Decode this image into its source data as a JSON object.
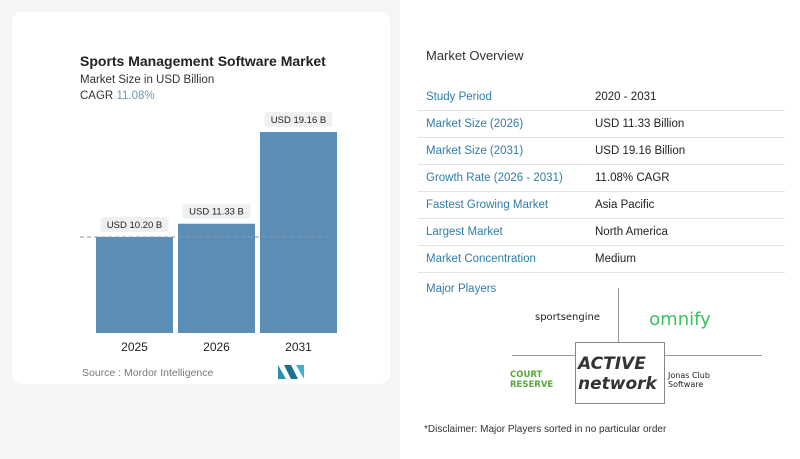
{
  "chart_data": {
    "type": "bar",
    "title": "Sports Management Software Market",
    "subtitle": "Market Size in USD Billion",
    "cagr_label": "CAGR",
    "cagr_value": "11.08%",
    "categories": [
      "2025",
      "2026",
      "2031"
    ],
    "values": [
      10.2,
      11.33,
      19.16
    ],
    "data_labels": [
      "USD 10.20 B",
      "USD 11.33 B",
      "USD 19.16 B"
    ],
    "ylim": [
      2,
      20
    ],
    "reference_line_value": 10.2,
    "bar_color": "#5b8db5",
    "source": "Source :  Mordor Intelligence"
  },
  "overview": {
    "title": "Market Overview",
    "rows": [
      {
        "label": "Study Period",
        "value": "2020 - 2031"
      },
      {
        "label": "Market Size (2026)",
        "value": "USD 11.33 Billion"
      },
      {
        "label": "Market Size (2031)",
        "value": "USD 19.16 Billion"
      },
      {
        "label": "Growth Rate (2026 - 2031)",
        "value": "11.08% CAGR"
      },
      {
        "label": "Fastest Growing Market",
        "value": "Asia Pacific"
      },
      {
        "label": "Largest Market",
        "value": "North America"
      },
      {
        "label": "Market Concentration",
        "value": "Medium"
      }
    ]
  },
  "players": {
    "title": "Major Players",
    "logos": [
      "sportsengine",
      "omnify",
      "COURT RESERVE",
      "ACTIVE network",
      "Jonas Club Software"
    ]
  },
  "disclaimer": "*Disclaimer: Major Players sorted in no particular order"
}
